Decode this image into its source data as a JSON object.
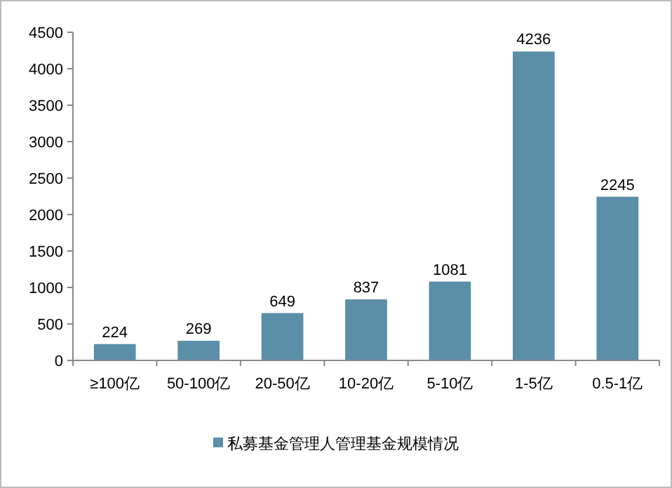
{
  "chart_data": {
    "type": "bar",
    "categories": [
      "≥100亿",
      "50-100亿",
      "20-50亿",
      "10-20亿",
      "5-10亿",
      "1-5亿",
      "0.5-1亿"
    ],
    "series": [
      {
        "name": "私募基金管理人管理基金规模情况",
        "color": "#5b8fa8",
        "values": [
          224,
          269,
          649,
          837,
          1081,
          4236,
          2245
        ]
      }
    ],
    "ylim": [
      0,
      4500
    ],
    "yticks": [
      0,
      500,
      1000,
      1500,
      2000,
      2500,
      3000,
      3500,
      4000,
      4500
    ],
    "data_labels": true,
    "legend": "bottom",
    "grid": false
  }
}
